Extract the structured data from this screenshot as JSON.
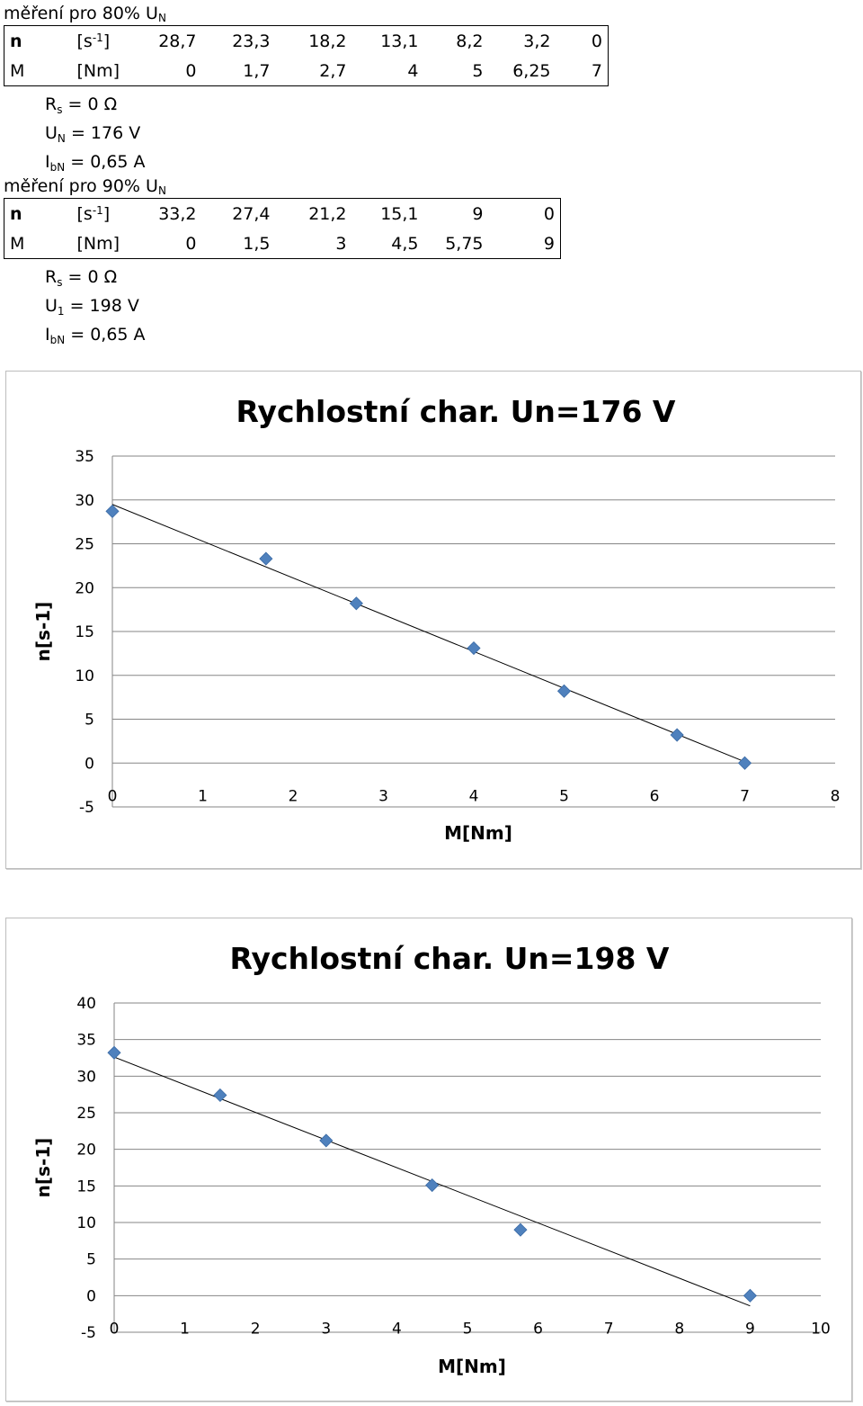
{
  "sections": [
    {
      "title_main": "měření pro 80% U",
      "title_sub": "N",
      "table": {
        "rows": [
          {
            "label": "n",
            "unit_main": "[s",
            "unit_sup": "-1",
            "unit_end": "]",
            "values": [
              "28,7",
              "23,3",
              "18,2",
              "13,1",
              "8,2",
              "3,2",
              "0"
            ]
          },
          {
            "label": "M",
            "unit_main": "[Nm]",
            "unit_sup": "",
            "unit_end": "",
            "values": [
              "0",
              "1,7",
              "2,7",
              "4",
              "5",
              "6,25",
              "7"
            ]
          }
        ]
      },
      "params": [
        {
          "sym": "R",
          "sub": "s",
          "val": " = 0 Ω"
        },
        {
          "sym": "U",
          "sub": "N",
          "val": " = 176 V"
        },
        {
          "sym": "I",
          "sub": "bN",
          "val": " = 0,65 A"
        }
      ]
    },
    {
      "title_main": "měření pro 90% U",
      "title_sub": "N",
      "table": {
        "rows": [
          {
            "label": "n",
            "unit_main": "[s",
            "unit_sup": "-1",
            "unit_end": "]",
            "values": [
              "33,2",
              "27,4",
              "21,2",
              "15,1",
              "9",
              "0"
            ]
          },
          {
            "label": "M",
            "unit_main": "[Nm]",
            "unit_sup": "",
            "unit_end": "",
            "values": [
              "0",
              "1,5",
              "3",
              "4,5",
              "5,75",
              "9"
            ]
          }
        ]
      },
      "params": [
        {
          "sym": "R",
          "sub": "s",
          "val": " = 0 Ω"
        },
        {
          "sym": "U",
          "sub": "1",
          "val": " = 198 V"
        },
        {
          "sym": "I",
          "sub": "bN",
          "val": " = 0,65 A"
        }
      ]
    }
  ],
  "chart_data": [
    {
      "type": "scatter",
      "title": "Rychlostní char. Un=176 V",
      "xlabel": "M[Nm]",
      "ylabel": "n[s-1]",
      "xlim": [
        0,
        8
      ],
      "ylim": [
        -5,
        35
      ],
      "xticks": [
        0,
        1,
        2,
        3,
        4,
        5,
        6,
        7,
        8
      ],
      "yticks": [
        -5,
        0,
        5,
        10,
        15,
        20,
        25,
        30,
        35
      ],
      "grid": "horizontal",
      "marker_color": "#4f81bd",
      "trendline": "linear",
      "x": [
        0,
        1.7,
        2.7,
        4,
        5,
        6.25,
        7
      ],
      "y": [
        28.7,
        23.3,
        18.2,
        13.1,
        8.2,
        3.2,
        0
      ]
    },
    {
      "type": "scatter",
      "title": "Rychlostní char. Un=198 V",
      "xlabel": "M[Nm]",
      "ylabel": "n[s-1]",
      "xlim": [
        0,
        10
      ],
      "ylim": [
        -5,
        40
      ],
      "xticks": [
        0,
        1,
        2,
        3,
        4,
        5,
        6,
        7,
        8,
        9,
        10
      ],
      "yticks": [
        -5,
        0,
        5,
        10,
        15,
        20,
        25,
        30,
        35,
        40
      ],
      "grid": "horizontal",
      "marker_color": "#4f81bd",
      "trendline": "linear",
      "x": [
        0,
        1.5,
        3,
        4.5,
        5.75,
        9
      ],
      "y": [
        33.2,
        27.4,
        21.2,
        15.1,
        9,
        0
      ]
    }
  ]
}
